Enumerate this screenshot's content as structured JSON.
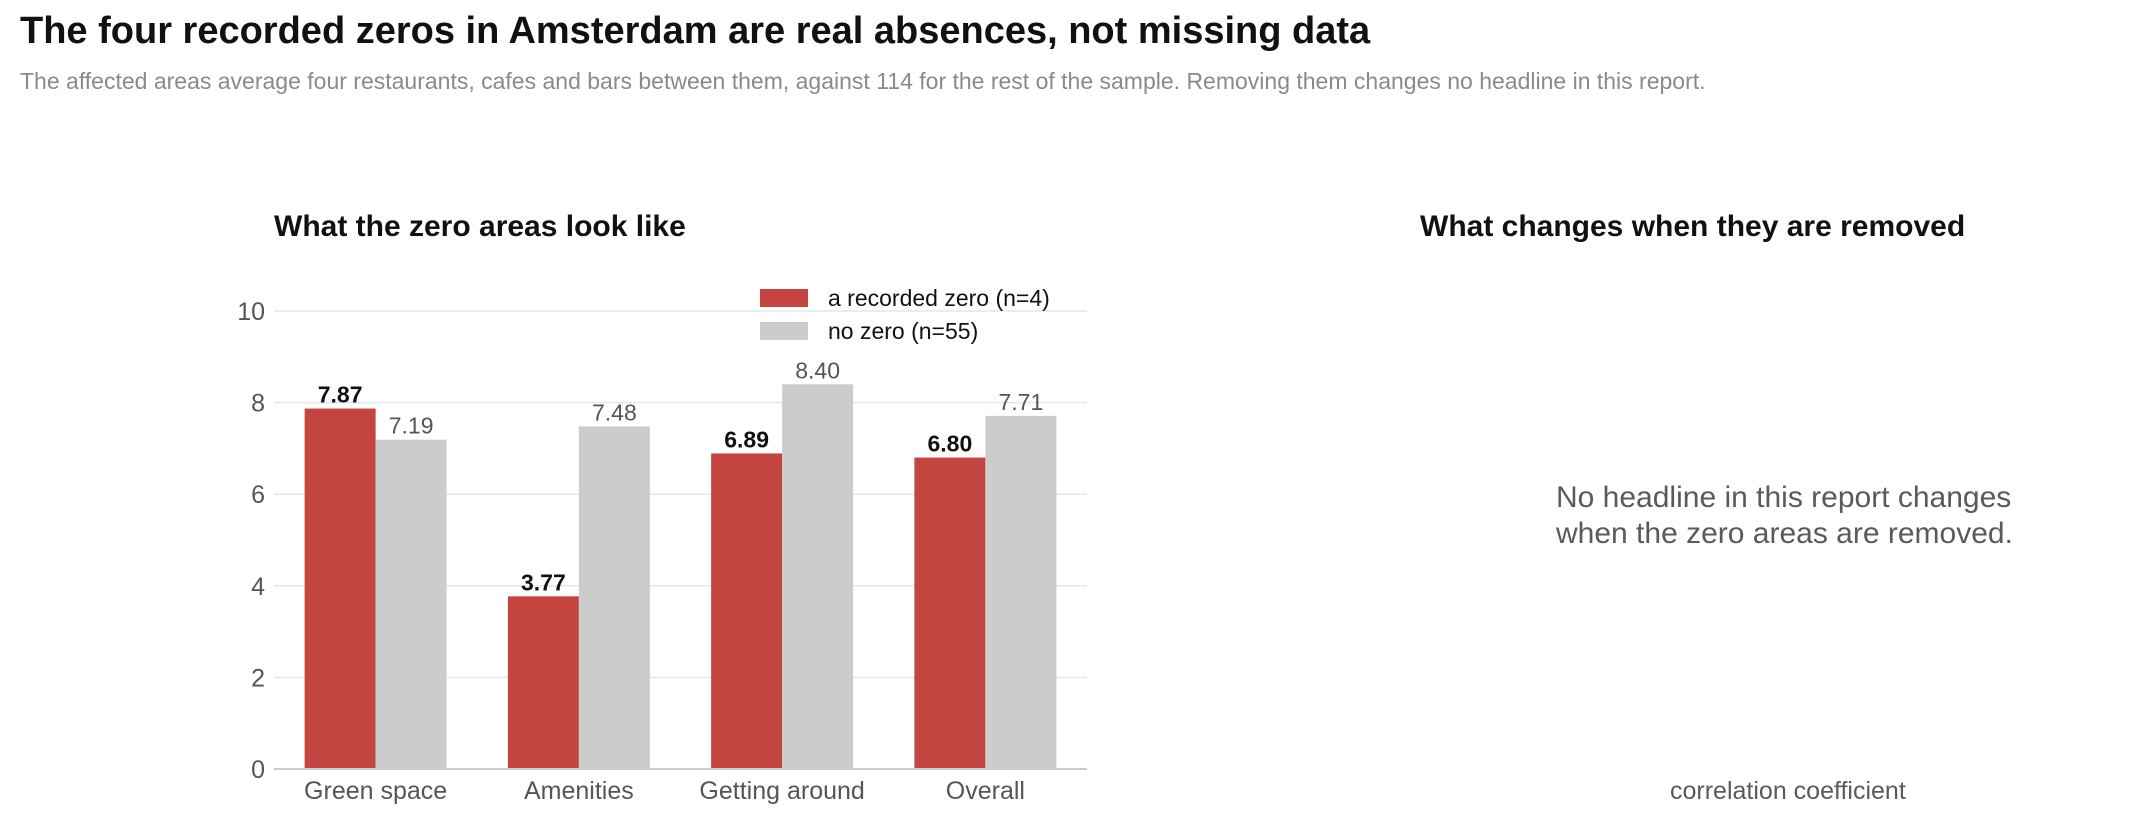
{
  "title": "The four recorded zeros in Amsterdam are real absences, not missing data",
  "subtitle": "The affected areas average four restaurants, cafes and bars between them, against 114 for the rest of the sample. Removing them changes no headline in this report.",
  "colors": {
    "zero": "#c44540",
    "no_zero": "#cccccc",
    "grid": "#e6e6e6",
    "axis_text": "#555555"
  },
  "chart_data": [
    {
      "type": "bar",
      "title": "What the zero areas look like",
      "categories": [
        "Green space",
        "Amenities",
        "Getting around",
        "Overall"
      ],
      "series": [
        {
          "name": "a recorded zero (n=4)",
          "values": [
            7.87,
            3.77,
            6.89,
            6.8
          ],
          "labels": [
            "7.87",
            "3.77",
            "6.89",
            "6.80"
          ]
        },
        {
          "name": "no zero (n=55)",
          "values": [
            7.19,
            7.48,
            8.4,
            7.71
          ],
          "labels": [
            "7.19",
            "7.48",
            "8.40",
            "7.71"
          ]
        }
      ],
      "yticks": [
        "0",
        "2",
        "4",
        "6",
        "8",
        "10"
      ],
      "ylim": [
        0,
        10
      ],
      "grid": true,
      "legend": "top-right"
    },
    {
      "type": "bar",
      "title": "What changes when they are removed",
      "message_lines": [
        "No headline in this report changes",
        "when the zero areas are removed."
      ],
      "xlabel": "correlation coefficient"
    }
  ]
}
